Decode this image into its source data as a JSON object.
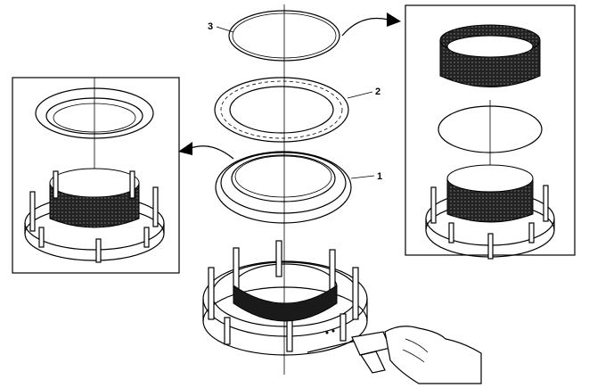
{
  "callouts": {
    "one": "1",
    "two": "2",
    "three": "3"
  },
  "colors": {
    "line": "#000000",
    "fill_dark": "#1a1a1a",
    "background": "#ffffff"
  },
  "icons": [
    "curved-arrow-left",
    "curved-arrow-right",
    "air-nozzle"
  ]
}
